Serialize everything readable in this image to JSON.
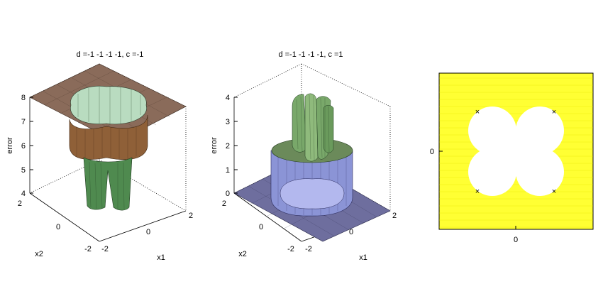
{
  "chart_data": [
    {
      "type": "surface3d",
      "title": "d =-1 -1 -1 -1, c =-1",
      "zlabel": "error",
      "xlabel": "x1",
      "ylabel": "x2",
      "zlim": [
        4,
        8
      ],
      "zticks": [
        "4",
        "5",
        "6",
        "7",
        "8"
      ],
      "xticks": [
        "-2",
        "0",
        "2"
      ],
      "yticks": [
        "2",
        "0",
        "-2"
      ],
      "levels": {
        "outer_plateau": 8,
        "ring_level": 6,
        "floor": 4
      },
      "colors": {
        "plateau": "#8a6b5a",
        "ring": "#8f6038",
        "inner_wall": "#b9dcc0",
        "columns": "#4f8a4f"
      }
    },
    {
      "type": "surface3d",
      "title": "d =-1 -1 -1 -1, c =1",
      "zlabel": "error",
      "xlabel": "x1",
      "ylabel": "x2",
      "zlim": [
        0,
        4
      ],
      "zticks": [
        "0",
        "1",
        "2",
        "3",
        "4"
      ],
      "xticks": [
        "-2",
        "0",
        "2"
      ],
      "yticks": [
        "2",
        "0",
        "-2"
      ],
      "levels": {
        "outer_floor": 0,
        "ring_level": 2,
        "peaks": 4
      },
      "colors": {
        "floor": "#6e6e9e",
        "ring": "#8b94d6",
        "inner": "#b3b8ee",
        "peaks": "#79a86a"
      }
    },
    {
      "type": "heatmap",
      "xlabel": "0",
      "ylabel": "0",
      "markers": [
        {
          "x": -1,
          "y": 1,
          "symbol": "×"
        },
        {
          "x": 1,
          "y": 1,
          "symbol": "×"
        },
        {
          "x": -1,
          "y": -1,
          "symbol": "×"
        },
        {
          "x": 1,
          "y": -1,
          "symbol": "×"
        }
      ],
      "colors": {
        "background": "#ffff33",
        "region": "#ffffff"
      }
    }
  ]
}
